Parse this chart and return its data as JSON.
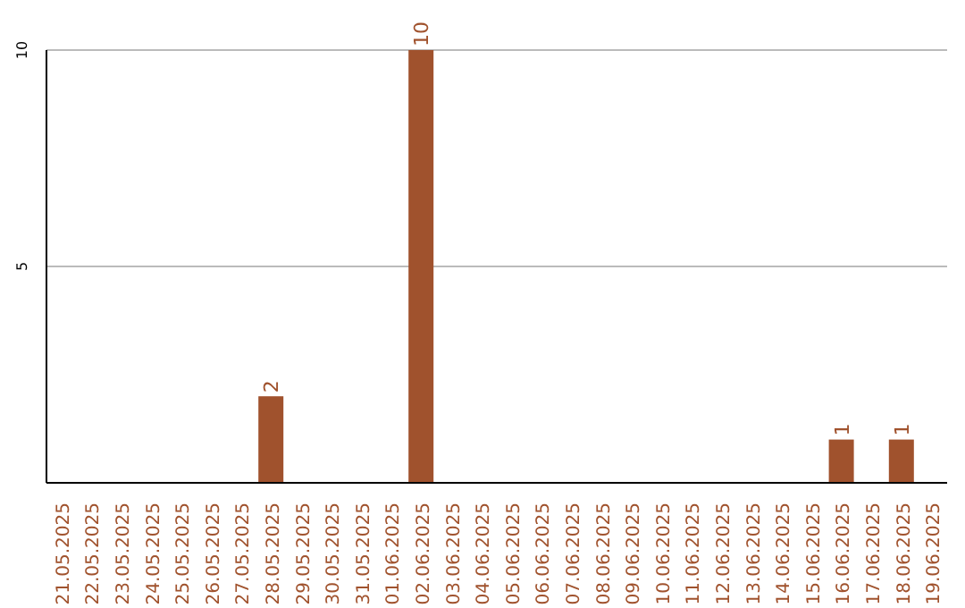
{
  "chart_data": {
    "type": "bar",
    "categories": [
      "21.05.2025",
      "22.05.2025",
      "23.05.2025",
      "24.05.2025",
      "25.05.2025",
      "26.05.2025",
      "27.05.2025",
      "28.05.2025",
      "29.05.2025",
      "30.05.2025",
      "31.05.2025",
      "01.06.2025",
      "02.06.2025",
      "03.06.2025",
      "04.06.2025",
      "05.06.2025",
      "06.06.2025",
      "07.06.2025",
      "08.06.2025",
      "09.06.2025",
      "10.06.2025",
      "11.06.2025",
      "12.06.2025",
      "13.06.2025",
      "14.06.2025",
      "15.06.2025",
      "16.06.2025",
      "17.06.2025",
      "18.06.2025",
      "19.06.2025"
    ],
    "values": [
      0,
      0,
      0,
      0,
      0,
      0,
      0,
      2,
      0,
      0,
      0,
      0,
      10,
      0,
      0,
      0,
      0,
      0,
      0,
      0,
      0,
      0,
      0,
      0,
      0,
      0,
      1,
      0,
      1,
      0
    ],
    "value_labels": [
      null,
      null,
      null,
      null,
      null,
      null,
      null,
      "2",
      null,
      null,
      null,
      null,
      "10",
      null,
      null,
      null,
      null,
      null,
      null,
      null,
      null,
      null,
      null,
      null,
      null,
      null,
      "1",
      null,
      "1",
      null
    ],
    "color": "#a0522d",
    "ylim": [
      0,
      10
    ],
    "yticks": [
      5,
      10
    ],
    "grid": "y"
  }
}
